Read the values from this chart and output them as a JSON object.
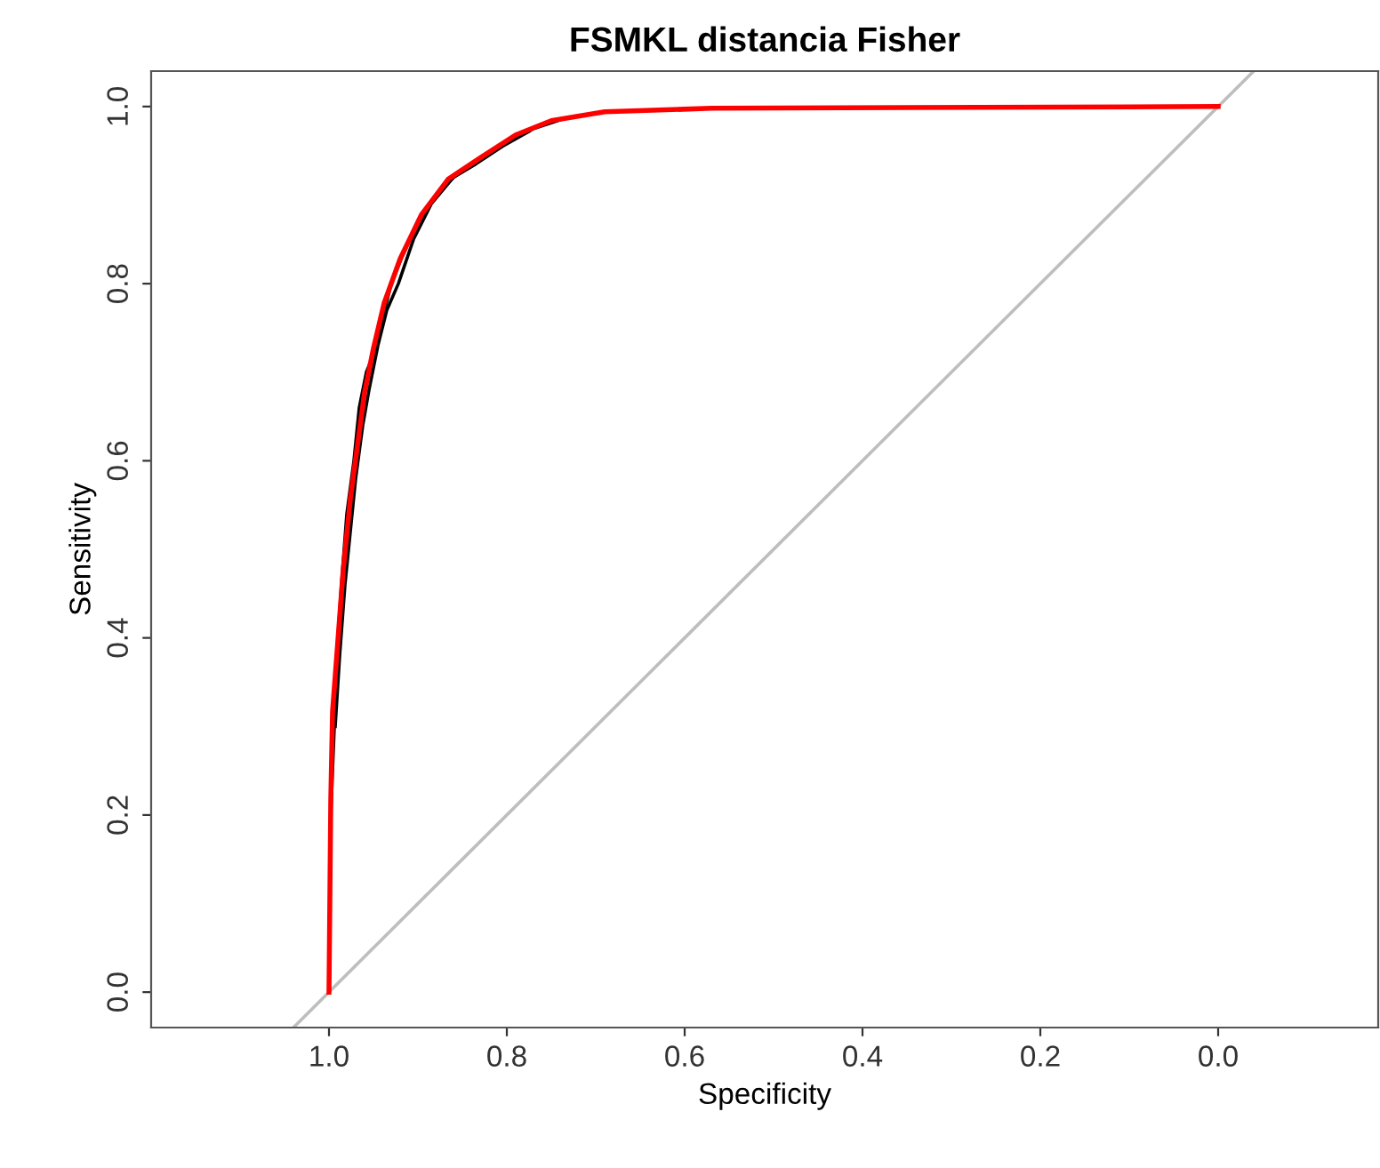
{
  "chart_data": {
    "type": "line",
    "title": "FSMKL distancia Fisher",
    "xlabel": "Specificity",
    "ylabel": "Sensitivity",
    "xlim": [
      1.2,
      -0.18
    ],
    "ylim": [
      -0.04,
      1.04
    ],
    "xticks": [
      {
        "value": 1,
        "label": "1.0"
      },
      {
        "value": 0.8,
        "label": "0.8"
      },
      {
        "value": 0.6,
        "label": "0.6"
      },
      {
        "value": 0.4,
        "label": "0.4"
      },
      {
        "value": 0.2,
        "label": "0.2"
      },
      {
        "value": 0,
        "label": "0.0"
      }
    ],
    "yticks": [
      {
        "value": 0,
        "label": "0.0"
      },
      {
        "value": 0.2,
        "label": "0.2"
      },
      {
        "value": 0.4,
        "label": "0.4"
      },
      {
        "value": 0.6,
        "label": "0.6"
      },
      {
        "value": 0.8,
        "label": "0.8"
      },
      {
        "value": 1,
        "label": "1.0"
      }
    ],
    "grid": false,
    "marker": "none",
    "line_style": "solid",
    "series": [
      {
        "color": "#bebebe",
        "x": [
          1.04,
          -0.04
        ],
        "values": [
          -0.04,
          1.04
        ]
      },
      {
        "color": "#000000",
        "x": [
          1.0,
          0.998,
          0.994,
          0.99,
          0.986,
          0.98,
          0.972,
          0.966,
          0.958,
          0.95,
          0.94,
          0.93,
          0.918,
          0.9,
          0.88,
          0.86,
          0.83,
          0.8,
          0.77,
          0.74
        ],
        "values": [
          0.0,
          0.2,
          0.3,
          0.4,
          0.46,
          0.54,
          0.6,
          0.66,
          0.7,
          0.72,
          0.76,
          0.8,
          0.83,
          0.87,
          0.9,
          0.92,
          0.94,
          0.96,
          0.975,
          0.985
        ]
      },
      {
        "color": "#000000",
        "x": [
          0.993,
          0.988,
          0.982,
          0.976,
          0.97,
          0.962,
          0.955,
          0.945,
          0.935,
          0.922,
          0.905,
          0.885,
          0.86,
          0.835,
          0.805,
          0.775
        ],
        "values": [
          0.3,
          0.38,
          0.46,
          0.52,
          0.58,
          0.64,
          0.68,
          0.73,
          0.77,
          0.8,
          0.85,
          0.89,
          0.92,
          0.935,
          0.955,
          0.972
        ]
      },
      {
        "color": "#ff0000",
        "x": [
          1.0,
          0.998,
          0.996,
          0.99,
          0.984,
          0.976,
          0.968,
          0.96,
          0.95,
          0.938,
          0.92,
          0.896,
          0.866,
          0.83,
          0.79,
          0.75,
          0.69,
          0.57,
          0.0
        ],
        "values": [
          0.0,
          0.216,
          0.317,
          0.397,
          0.477,
          0.557,
          0.617,
          0.677,
          0.727,
          0.778,
          0.828,
          0.878,
          0.918,
          0.942,
          0.968,
          0.984,
          0.994,
          0.998,
          1.0
        ]
      }
    ]
  }
}
